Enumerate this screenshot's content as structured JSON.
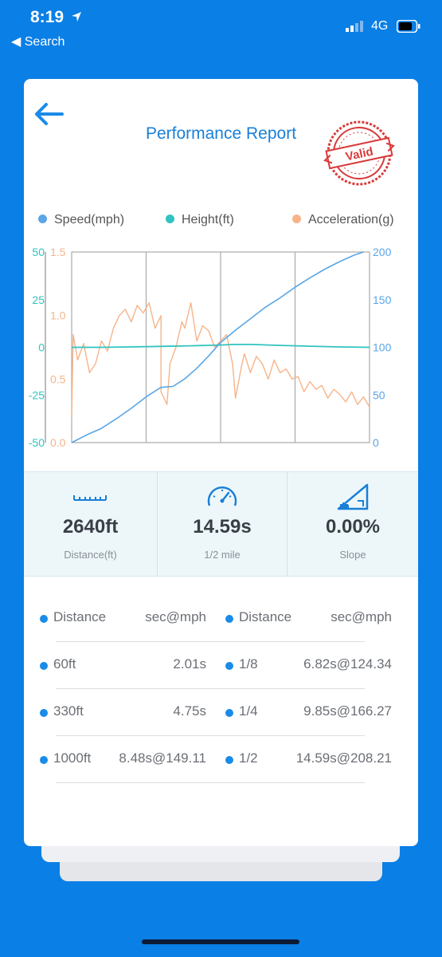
{
  "status_bar": {
    "time": "8:19",
    "back_label": "◀ Search",
    "network": "4G"
  },
  "report": {
    "title": "Performance Report",
    "stamp_text": "Valid"
  },
  "legend": [
    {
      "label": "Speed(mph)",
      "color": "#5aa6e6"
    },
    {
      "label": "Height(ft)",
      "color": "#2fc4c0"
    },
    {
      "label": "Acceleration(g)",
      "color": "#f6b48a"
    }
  ],
  "chart_data": {
    "type": "line",
    "title": "",
    "x_gridlines": 4,
    "grid": true,
    "axes": {
      "height_ticks": [
        "50",
        "25",
        "0",
        "-25",
        "-50"
      ],
      "height_range": [
        -50,
        50
      ],
      "accel_ticks": [
        "1.5",
        "1.0",
        "0.5",
        "0.0"
      ],
      "accel_range": [
        0.0,
        1.5
      ],
      "speed_ticks": [
        "200",
        "150",
        "100",
        "50",
        "0"
      ],
      "speed_range": [
        0,
        200
      ]
    },
    "series": [
      {
        "name": "Speed(mph)",
        "axis": "speed",
        "x": [
          0,
          0.05,
          0.1,
          0.15,
          0.2,
          0.25,
          0.3,
          0.34,
          0.38,
          0.42,
          0.46,
          0.5,
          0.55,
          0.6,
          0.65,
          0.7,
          0.75,
          0.8,
          0.85,
          0.9,
          0.95,
          0.98
        ],
        "values": [
          0,
          8,
          15,
          25,
          36,
          48,
          58,
          59,
          67,
          78,
          91,
          105,
          118,
          130,
          142,
          152,
          163,
          173,
          182,
          190,
          197,
          200
        ]
      },
      {
        "name": "Height(ft)",
        "axis": "height",
        "x": [
          0,
          0.1,
          0.2,
          0.3,
          0.4,
          0.5,
          0.55,
          0.6,
          0.7,
          0.8,
          0.9,
          1.0
        ],
        "values": [
          0,
          0,
          0.2,
          0.5,
          0.8,
          1.2,
          1.5,
          1.5,
          1.0,
          0.6,
          0.2,
          0
        ]
      },
      {
        "name": "Acceleration(g)",
        "axis": "accel",
        "x": [
          0,
          0.005,
          0.02,
          0.04,
          0.06,
          0.08,
          0.1,
          0.12,
          0.14,
          0.16,
          0.18,
          0.2,
          0.22,
          0.24,
          0.26,
          0.28,
          0.3,
          0.3,
          0.32,
          0.33,
          0.35,
          0.37,
          0.38,
          0.4,
          0.42,
          0.44,
          0.46,
          0.48,
          0.5,
          0.52,
          0.54,
          0.55,
          0.57,
          0.58,
          0.6,
          0.62,
          0.64,
          0.66,
          0.68,
          0.7,
          0.72,
          0.74,
          0.76,
          0.78,
          0.8,
          0.82,
          0.84,
          0.86,
          0.88,
          0.9,
          0.92,
          0.94,
          0.96,
          0.98,
          1.0
        ],
        "values": [
          0.2,
          0.85,
          0.65,
          0.78,
          0.55,
          0.62,
          0.8,
          0.72,
          0.9,
          1.0,
          1.05,
          0.95,
          1.08,
          1.02,
          1.1,
          0.9,
          1.0,
          0.4,
          0.3,
          0.62,
          0.75,
          0.95,
          0.9,
          1.1,
          0.8,
          0.92,
          0.88,
          0.75,
          0.8,
          0.85,
          0.62,
          0.35,
          0.6,
          0.7,
          0.55,
          0.68,
          0.62,
          0.5,
          0.65,
          0.55,
          0.58,
          0.5,
          0.52,
          0.4,
          0.48,
          0.42,
          0.45,
          0.35,
          0.42,
          0.38,
          0.32,
          0.4,
          0.3,
          0.36,
          0.28
        ]
      }
    ]
  },
  "stats": [
    {
      "icon": "ruler-icon",
      "value": "2640ft",
      "label": "Distance(ft)"
    },
    {
      "icon": "speedometer-icon",
      "value": "14.59s",
      "label": "1/2 mile"
    },
    {
      "icon": "slope-icon",
      "value": "0.00%",
      "label": "Slope"
    }
  ],
  "table": {
    "header": {
      "left_name": "Distance",
      "left_val": "sec@mph",
      "right_name": "Distance",
      "right_val": "sec@mph"
    },
    "rows": [
      {
        "left_name": "60ft",
        "left_val": "2.01s",
        "right_name": "1/8",
        "right_val": "6.82s@124.34"
      },
      {
        "left_name": "330ft",
        "left_val": "4.75s",
        "right_name": "1/4",
        "right_val": "9.85s@166.27"
      },
      {
        "left_name": "1000ft",
        "left_val": "8.48s@149.11",
        "right_name": "1/2",
        "right_val": "14.59s@208.21"
      }
    ]
  }
}
